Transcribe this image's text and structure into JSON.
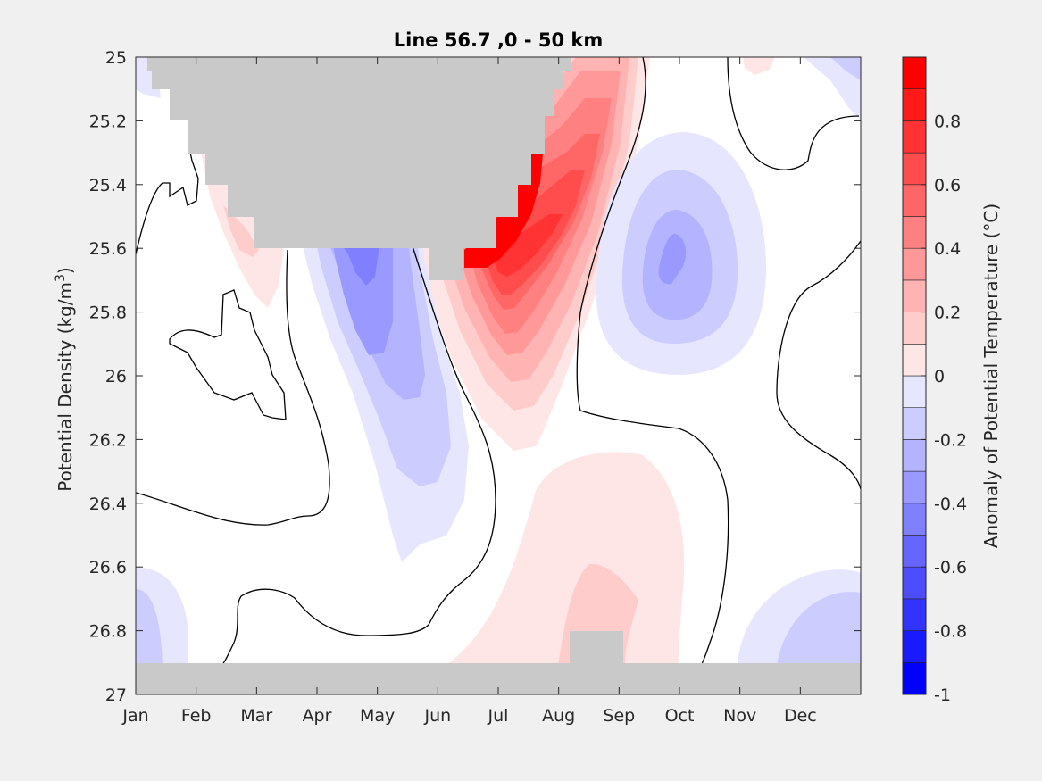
{
  "chart_data": {
    "type": "heatmap",
    "subtype": "filled-contour",
    "title": "Line 56.7 ,0 - 50 km",
    "xlabel": "",
    "ylabel": "Potential Density (kg/m",
    "ylabel_superscript": "3",
    "ylabel_close": ")",
    "colorbar_label": "Anomaly of Potential Temperature (°C)",
    "x_ticks": [
      "Jan",
      "Feb",
      "Mar",
      "Apr",
      "May",
      "Jun",
      "Jul",
      "Aug",
      "Sep",
      "Oct",
      "Nov",
      "Dec"
    ],
    "y_ticks": [
      25,
      25.2,
      25.4,
      25.6,
      25.8,
      26,
      26.2,
      26.4,
      26.6,
      26.8,
      27
    ],
    "y_tick_labels": [
      "25",
      "25.2",
      "25.4",
      "25.6",
      "25.8",
      "26",
      "26.2",
      "26.4",
      "26.6",
      "26.8",
      "27"
    ],
    "ylim": [
      25,
      27
    ],
    "y_reversed": true,
    "xlim_months": [
      0,
      12
    ],
    "colorbar": {
      "range": [
        -1,
        1
      ],
      "levels": [
        -1,
        -0.9,
        -0.8,
        -0.7,
        -0.6,
        -0.5,
        -0.4,
        -0.3,
        -0.2,
        -0.1,
        0,
        0.1,
        0.2,
        0.3,
        0.4,
        0.5,
        0.6,
        0.7,
        0.8,
        0.9,
        1
      ],
      "tick_values": [
        0.8,
        0.6,
        0.4,
        0.2,
        0,
        -0.2,
        -0.4,
        -0.6,
        -0.8,
        -1
      ],
      "tick_labels": [
        "0.8",
        "0.6",
        "0.4",
        "0.2",
        "0",
        "-0.2",
        "-0.4",
        "-0.6",
        "-0.8",
        "-1"
      ],
      "colors_neg": [
        "#0000ff",
        "#1a1aff",
        "#3333ff",
        "#4d4dff",
        "#6666ff",
        "#8080ff",
        "#9999ff",
        "#b3b3ff",
        "#ccccff",
        "#e6e6ff"
      ],
      "colors_pos": [
        "#ffe6e6",
        "#ffcccc",
        "#ffb3b3",
        "#ff9999",
        "#ff8080",
        "#ff6666",
        "#ff4d4d",
        "#ff3333",
        "#ff1a1a",
        "#ff0000"
      ]
    },
    "features": [
      {
        "name": "positive-core",
        "month": 6.05,
        "density": 25.65,
        "peak_anomaly": 0.9
      },
      {
        "name": "negative-core-may",
        "month": 4.65,
        "density": 25.7,
        "peak_anomaly": -0.5
      },
      {
        "name": "negative-core-oct",
        "month": 8.85,
        "density": 25.65,
        "peak_anomaly": -0.4
      },
      {
        "name": "positive-deep-aug",
        "month": 7.3,
        "density": 26.65,
        "peak_anomaly": 0.2
      },
      {
        "name": "masked-surface-region",
        "months": [
          0.25,
          7.3
        ],
        "density_min": 25,
        "density_max": 25.7
      },
      {
        "name": "masked-bottom-region",
        "months": [
          0,
          12
        ],
        "density_min": 26.9,
        "density_max": 27
      }
    ],
    "grid": false,
    "legend": "colorbar-right",
    "mask_color": "#c9c9c9"
  }
}
